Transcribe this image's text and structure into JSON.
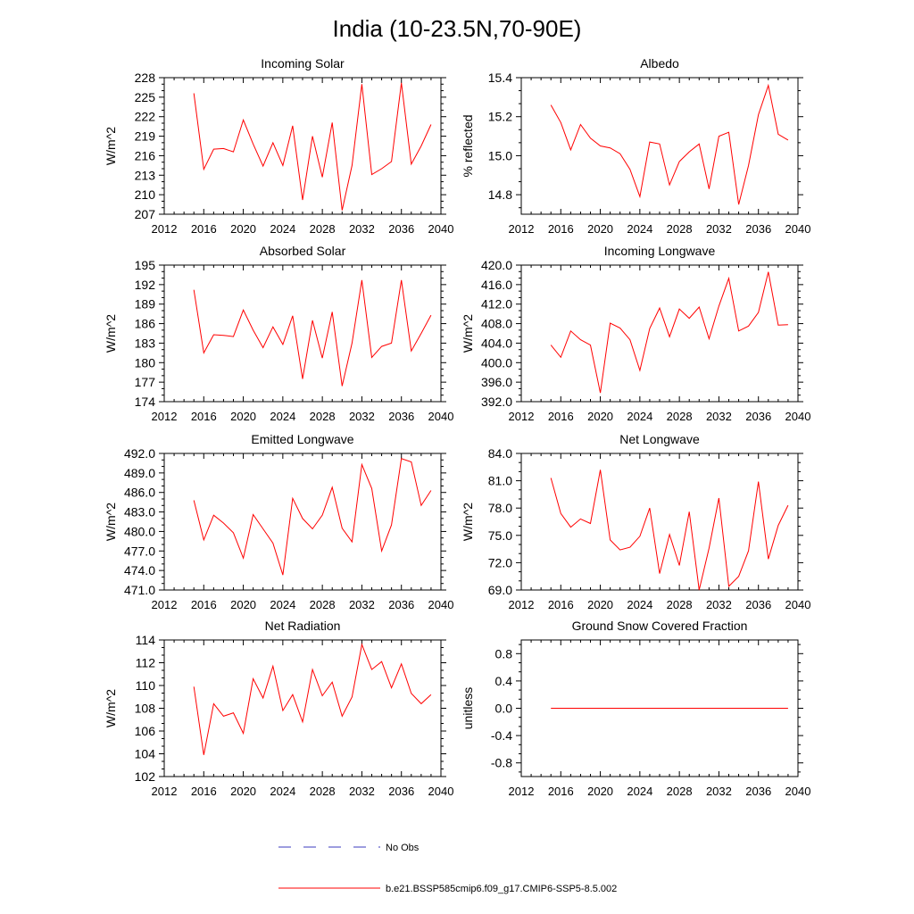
{
  "figure": {
    "title": "India (10-23.5N,70-90E)",
    "line_color": "#ff0000",
    "obs_color": "#3b3bbf"
  },
  "legend": {
    "obs_label": "No Obs",
    "model_label": "b.e21.BSSP585cmip6.f09_g17.CMIP6-SSP5-8.5.002"
  },
  "chart_data": [
    {
      "type": "line",
      "title": "Incoming Solar",
      "ylabel": "W/m^2",
      "xlabel": "",
      "xlim": [
        2012,
        2040
      ],
      "xticks": [
        2012,
        2016,
        2020,
        2024,
        2028,
        2032,
        2036,
        2040
      ],
      "ylim": [
        207,
        228
      ],
      "yticks": [
        207,
        210,
        213,
        216,
        219,
        222,
        225,
        228
      ],
      "ytick_labels": [
        "207",
        "210",
        "213",
        "216",
        "219",
        "222",
        "225",
        "228"
      ],
      "series": [
        {
          "name": "b.e21.BSSP585cmip6.f09_g17.CMIP6-SSP5-8.5.002",
          "x": [
            2015,
            2016,
            2017,
            2018,
            2019,
            2020,
            2021,
            2022,
            2023,
            2024,
            2025,
            2026,
            2027,
            2028,
            2029,
            2030,
            2031,
            2032,
            2033,
            2034,
            2035,
            2036,
            2037,
            2038,
            2039
          ],
          "y": [
            225.6,
            213.9,
            217.0,
            217.1,
            216.6,
            221.5,
            217.8,
            214.4,
            218.0,
            214.5,
            220.6,
            209.2,
            219.0,
            212.7,
            221.1,
            207.6,
            214.5,
            227.0,
            213.1,
            214.0,
            215.1,
            227.2,
            214.7,
            217.5,
            220.8
          ]
        }
      ]
    },
    {
      "type": "line",
      "title": "Albedo",
      "ylabel": "% reflected",
      "xlabel": "",
      "xlim": [
        2012,
        2040
      ],
      "xticks": [
        2012,
        2016,
        2020,
        2024,
        2028,
        2032,
        2036,
        2040
      ],
      "ylim": [
        14.7,
        15.4
      ],
      "yticks": [
        14.8,
        15.0,
        15.2,
        15.4
      ],
      "ytick_labels": [
        "14.8",
        "15.0",
        "15.2",
        "15.4"
      ],
      "series": [
        {
          "name": "b.e21.BSSP585cmip6.f09_g17.CMIP6-SSP5-8.5.002",
          "x": [
            2015,
            2016,
            2017,
            2018,
            2019,
            2020,
            2021,
            2022,
            2023,
            2024,
            2025,
            2026,
            2027,
            2028,
            2029,
            2030,
            2031,
            2032,
            2033,
            2034,
            2035,
            2036,
            2037,
            2038,
            2039
          ],
          "y": [
            15.26,
            15.17,
            15.03,
            15.16,
            15.09,
            15.05,
            15.04,
            15.01,
            14.93,
            14.79,
            15.07,
            15.06,
            14.85,
            14.97,
            15.02,
            15.06,
            14.83,
            15.1,
            15.12,
            14.75,
            14.95,
            15.21,
            15.36,
            15.11,
            15.08
          ]
        }
      ]
    },
    {
      "type": "line",
      "title": "Absorbed Solar",
      "ylabel": "W/m^2",
      "xlabel": "",
      "xlim": [
        2012,
        2040
      ],
      "xticks": [
        2012,
        2016,
        2020,
        2024,
        2028,
        2032,
        2036,
        2040
      ],
      "ylim": [
        174,
        195
      ],
      "yticks": [
        174,
        177,
        180,
        183,
        186,
        189,
        192,
        195
      ],
      "ytick_labels": [
        "174",
        "177",
        "180",
        "183",
        "186",
        "189",
        "192",
        "195"
      ],
      "series": [
        {
          "name": "b.e21.BSSP585cmip6.f09_g17.CMIP6-SSP5-8.5.002",
          "x": [
            2015,
            2016,
            2017,
            2018,
            2019,
            2020,
            2021,
            2022,
            2023,
            2024,
            2025,
            2026,
            2027,
            2028,
            2029,
            2030,
            2031,
            2032,
            2033,
            2034,
            2035,
            2036,
            2037,
            2038,
            2039
          ],
          "y": [
            191.2,
            181.5,
            184.3,
            184.2,
            184.0,
            188.1,
            185.0,
            182.3,
            185.5,
            182.8,
            187.2,
            177.5,
            186.5,
            180.7,
            187.8,
            176.4,
            183.0,
            192.7,
            180.8,
            182.5,
            183.0,
            192.7,
            181.8,
            184.5,
            187.3
          ]
        }
      ]
    },
    {
      "type": "line",
      "title": "Incoming Longwave",
      "ylabel": "W/m^2",
      "xlabel": "",
      "xlim": [
        2012,
        2040
      ],
      "xticks": [
        2012,
        2016,
        2020,
        2024,
        2028,
        2032,
        2036,
        2040
      ],
      "ylim": [
        392.0,
        420.0
      ],
      "yticks": [
        392,
        396,
        400,
        404,
        408,
        412,
        416,
        420
      ],
      "ytick_labels": [
        "392.0",
        "396.0",
        "400.0",
        "404.0",
        "408.0",
        "412.0",
        "416.0",
        "420.0"
      ],
      "series": [
        {
          "name": "b.e21.BSSP585cmip6.f09_g17.CMIP6-SSP5-8.5.002",
          "x": [
            2015,
            2016,
            2017,
            2018,
            2019,
            2020,
            2021,
            2022,
            2023,
            2024,
            2025,
            2026,
            2027,
            2028,
            2029,
            2030,
            2031,
            2032,
            2033,
            2034,
            2035,
            2036,
            2037,
            2038,
            2039
          ],
          "y": [
            403.6,
            401.1,
            406.5,
            404.7,
            403.6,
            393.8,
            408.1,
            407.1,
            404.7,
            398.4,
            407.0,
            411.2,
            405.3,
            411.0,
            409.1,
            411.4,
            404.9,
            411.6,
            417.3,
            406.5,
            407.5,
            410.3,
            418.6,
            407.7,
            407.8
          ]
        }
      ]
    },
    {
      "type": "line",
      "title": "Emitted Longwave",
      "ylabel": "W/m^2",
      "xlabel": "",
      "xlim": [
        2012,
        2040
      ],
      "xticks": [
        2012,
        2016,
        2020,
        2024,
        2028,
        2032,
        2036,
        2040
      ],
      "ylim": [
        471.0,
        492.0
      ],
      "yticks": [
        471,
        474,
        477,
        480,
        483,
        486,
        489,
        492
      ],
      "ytick_labels": [
        "471.0",
        "474.0",
        "477.0",
        "480.0",
        "483.0",
        "486.0",
        "489.0",
        "492.0"
      ],
      "series": [
        {
          "name": "b.e21.BSSP585cmip6.f09_g17.CMIP6-SSP5-8.5.002",
          "x": [
            2015,
            2016,
            2017,
            2018,
            2019,
            2020,
            2021,
            2022,
            2023,
            2024,
            2025,
            2026,
            2027,
            2028,
            2029,
            2030,
            2031,
            2032,
            2033,
            2034,
            2035,
            2036,
            2037,
            2038,
            2039
          ],
          "y": [
            484.8,
            478.7,
            482.5,
            481.3,
            479.8,
            475.9,
            482.6,
            480.4,
            478.2,
            473.3,
            485.1,
            482.0,
            480.4,
            482.5,
            486.8,
            480.5,
            478.4,
            490.3,
            486.6,
            477.0,
            481.0,
            491.2,
            490.7,
            484.0,
            486.3
          ]
        }
      ]
    },
    {
      "type": "line",
      "title": "Net Longwave",
      "ylabel": "W/m^2",
      "xlabel": "",
      "xlim": [
        2012,
        2040
      ],
      "xticks": [
        2012,
        2016,
        2020,
        2024,
        2028,
        2032,
        2036,
        2040
      ],
      "ylim": [
        69.0,
        84.0
      ],
      "yticks": [
        69,
        72,
        75,
        78,
        81,
        84
      ],
      "ytick_labels": [
        "69.0",
        "72.0",
        "75.0",
        "78.0",
        "81.0",
        "84.0"
      ],
      "series": [
        {
          "name": "b.e21.BSSP585cmip6.f09_g17.CMIP6-SSP5-8.5.002",
          "x": [
            2015,
            2016,
            2017,
            2018,
            2019,
            2020,
            2021,
            2022,
            2023,
            2024,
            2025,
            2026,
            2027,
            2028,
            2029,
            2030,
            2031,
            2032,
            2033,
            2034,
            2035,
            2036,
            2037,
            2038,
            2039
          ],
          "y": [
            81.3,
            77.4,
            75.9,
            76.8,
            76.3,
            82.2,
            74.5,
            73.4,
            73.7,
            74.9,
            78.0,
            70.8,
            75.1,
            71.7,
            77.6,
            69.0,
            73.6,
            79.1,
            69.4,
            70.5,
            73.3,
            80.9,
            72.4,
            76.1,
            78.3
          ]
        }
      ]
    },
    {
      "type": "line",
      "title": "Net Radiation",
      "ylabel": "W/m^2",
      "xlabel": "",
      "xlim": [
        2012,
        2040
      ],
      "xticks": [
        2012,
        2016,
        2020,
        2024,
        2028,
        2032,
        2036,
        2040
      ],
      "ylim": [
        102,
        114
      ],
      "yticks": [
        102,
        104,
        106,
        108,
        110,
        112,
        114
      ],
      "ytick_labels": [
        "102",
        "104",
        "106",
        "108",
        "110",
        "112",
        "114"
      ],
      "series": [
        {
          "name": "b.e21.BSSP585cmip6.f09_g17.CMIP6-SSP5-8.5.002",
          "x": [
            2015,
            2016,
            2017,
            2018,
            2019,
            2020,
            2021,
            2022,
            2023,
            2024,
            2025,
            2026,
            2027,
            2028,
            2029,
            2030,
            2031,
            2032,
            2033,
            2034,
            2035,
            2036,
            2037,
            2038,
            2039
          ],
          "y": [
            109.9,
            103.9,
            108.4,
            107.3,
            107.6,
            105.8,
            110.6,
            108.9,
            111.7,
            107.8,
            109.2,
            106.8,
            111.4,
            109.1,
            110.3,
            107.3,
            109.0,
            113.6,
            111.4,
            112.1,
            109.8,
            111.9,
            109.3,
            108.4,
            109.2
          ]
        }
      ]
    },
    {
      "type": "line",
      "title": "Ground Snow Covered Fraction",
      "ylabel": "unitless",
      "xlabel": "",
      "xlim": [
        2012,
        2040
      ],
      "xticks": [
        2012,
        2016,
        2020,
        2024,
        2028,
        2032,
        2036,
        2040
      ],
      "ylim": [
        -1.0,
        1.0
      ],
      "yticks": [
        -0.8,
        -0.4,
        0.0,
        0.4,
        0.8
      ],
      "ytick_labels": [
        "-0.8",
        "-0.4",
        "0.0",
        "0.4",
        "0.8"
      ],
      "series": [
        {
          "name": "b.e21.BSSP585cmip6.f09_g17.CMIP6-SSP5-8.5.002",
          "x": [
            2015,
            2016,
            2017,
            2018,
            2019,
            2020,
            2021,
            2022,
            2023,
            2024,
            2025,
            2026,
            2027,
            2028,
            2029,
            2030,
            2031,
            2032,
            2033,
            2034,
            2035,
            2036,
            2037,
            2038,
            2039
          ],
          "y": [
            0,
            0,
            0,
            0,
            0,
            0,
            0,
            0,
            0,
            0,
            0,
            0,
            0,
            0,
            0,
            0,
            0,
            0,
            0,
            0,
            0,
            0,
            0,
            0,
            0
          ]
        }
      ]
    }
  ]
}
